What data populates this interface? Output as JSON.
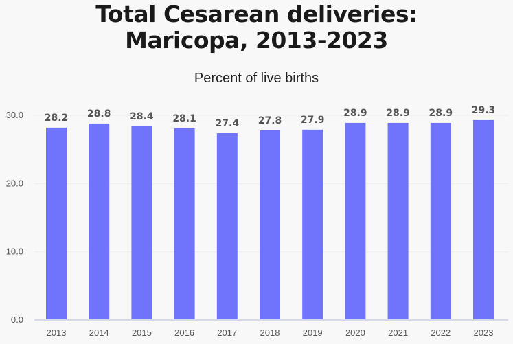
{
  "chart_data": {
    "type": "bar",
    "title_line1": "Total Cesarean deliveries:",
    "title_line2": "Maricopa, 2013-2023",
    "subtitle": "Percent of live births",
    "categories": [
      "2013",
      "2014",
      "2015",
      "2016",
      "2017",
      "2018",
      "2019",
      "2020",
      "2021",
      "2022",
      "2023"
    ],
    "values": [
      28.2,
      28.8,
      28.4,
      28.1,
      27.4,
      27.8,
      27.9,
      28.9,
      28.9,
      28.9,
      29.3
    ],
    "data_labels": [
      "28.2",
      "28.8",
      "28.4",
      "28.1",
      "27.4",
      "27.8",
      "27.9",
      "28.9",
      "28.9",
      "28.9",
      "29.3"
    ],
    "y_ticks": [
      "0.0",
      "10.0",
      "20.0",
      "30.0"
    ],
    "ylim": [
      0,
      30
    ],
    "grid": true,
    "bar_color": "#7073fb",
    "xlabel": "",
    "ylabel": ""
  }
}
